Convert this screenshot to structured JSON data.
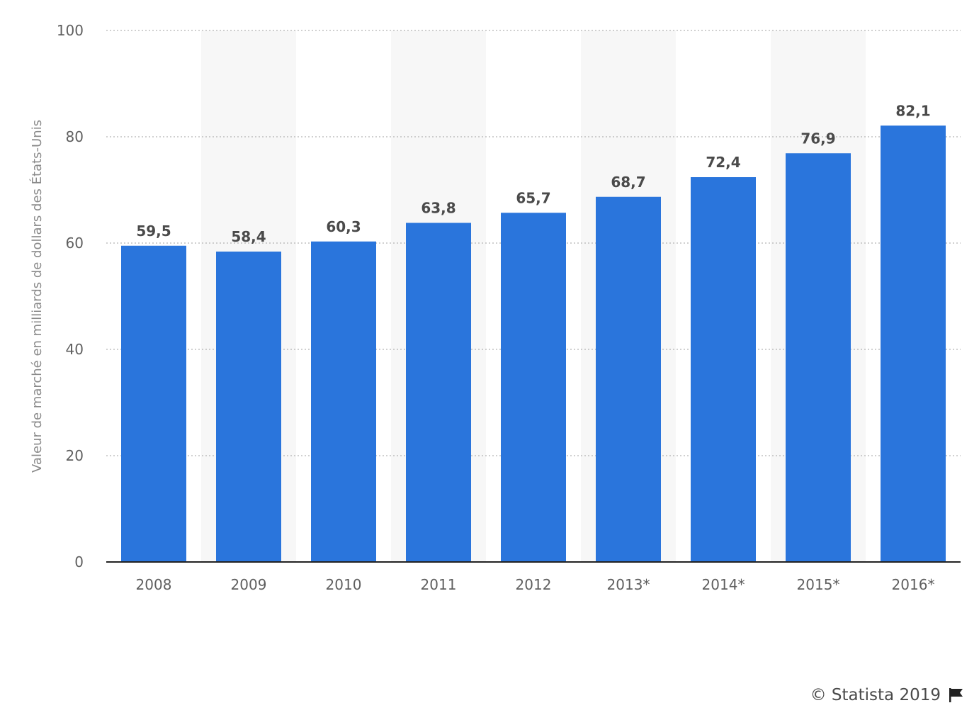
{
  "chart_data": {
    "type": "bar",
    "categories": [
      "2008",
      "2009",
      "2010",
      "2011",
      "2012",
      "2013*",
      "2014*",
      "2015*",
      "2016*"
    ],
    "values": [
      59.5,
      58.4,
      60.3,
      63.8,
      65.7,
      68.7,
      72.4,
      76.9,
      82.1
    ],
    "data_labels": [
      "59,5",
      "58,4",
      "60,3",
      "63,8",
      "65,7",
      "68,7",
      "72,4",
      "76,9",
      "82,1"
    ],
    "ylabel": "Valeur de marché en milliards de dollars des États-Unis",
    "xlabel": "",
    "ylim": [
      0,
      100
    ],
    "yticks": [
      0,
      20,
      40,
      60,
      80,
      100
    ],
    "grid": true,
    "legend": "none",
    "colors": {
      "bar": "#2a75dc",
      "band": "#f7f7f7",
      "axis_text": "#5f5f5f",
      "data_label": "#4a4a4a",
      "grid": "#b3b3b3",
      "baseline": "#222222"
    }
  },
  "footer": {
    "credit": "© Statista 2019",
    "flag_icon": "flag-icon"
  }
}
